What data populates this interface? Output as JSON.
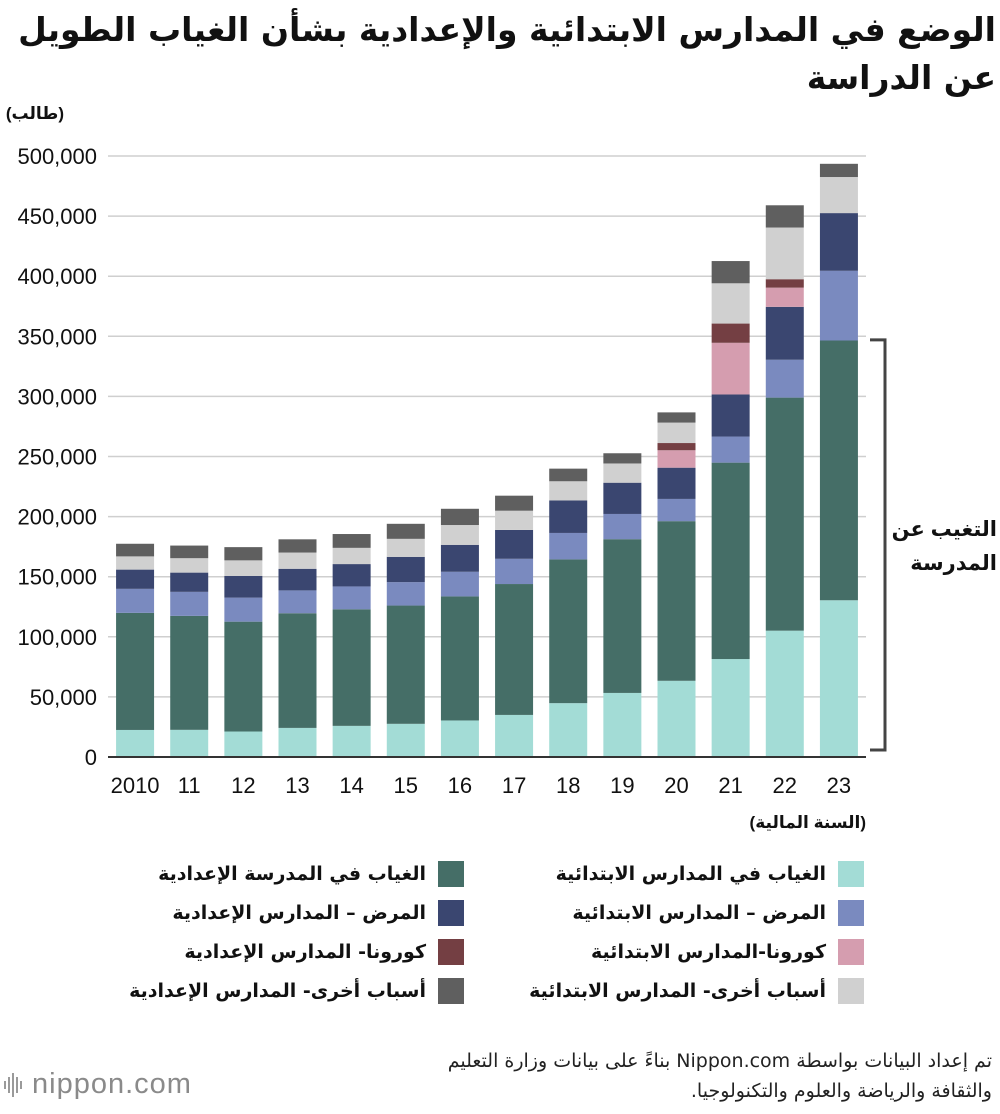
{
  "title": "الوضع في المدارس الابتدائية والإعدادية بشأن الغياب الطويل عن الدراسة",
  "chart_data": {
    "type": "stacked-bar",
    "ylabel": "(طالب)",
    "xlabel": "(السنة المالية)",
    "ylim": [
      0,
      500000
    ],
    "yticks": [
      0,
      50000,
      100000,
      150000,
      200000,
      250000,
      300000,
      350000,
      400000,
      450000,
      500000
    ],
    "ytick_labels": [
      "0",
      "50,000",
      "100,000",
      "150,000",
      "200,000",
      "250,000",
      "300,000",
      "350,000",
      "400,000",
      "450,000",
      "500,000"
    ],
    "categories": [
      "2010",
      "11",
      "12",
      "13",
      "14",
      "15",
      "16",
      "17",
      "18",
      "19",
      "20",
      "21",
      "22",
      "23"
    ],
    "series": [
      {
        "name": "الغياب في المدارس الابتدائية",
        "color": "#a3dcd6",
        "values": [
          22500,
          22600,
          21200,
          24200,
          25900,
          27600,
          30400,
          35000,
          44800,
          53300,
          63400,
          81500,
          105100,
          130400
        ]
      },
      {
        "name": "الغياب في المدرسة الإعدادية",
        "color": "#456e67",
        "values": [
          97400,
          94800,
          91400,
          95400,
          97000,
          98400,
          103200,
          108900,
          119600,
          127900,
          132800,
          163400,
          193900,
          216100
        ]
      },
      {
        "name": "المرض – المدارس الابتدائية",
        "color": "#7a8abf",
        "values": [
          20000,
          20000,
          20000,
          19000,
          19000,
          19500,
          20500,
          21000,
          22000,
          21000,
          18500,
          21700,
          31500,
          58000
        ]
      },
      {
        "name": "المرض – المدارس الإعدادية",
        "color": "#3a4670",
        "values": [
          16000,
          16000,
          18000,
          18000,
          18600,
          21000,
          22400,
          24000,
          27000,
          26000,
          26000,
          35000,
          44000,
          48000
        ]
      },
      {
        "name": "كورونا-المدارس الابتدائية",
        "color": "#d59daf",
        "values": [
          0,
          0,
          0,
          0,
          0,
          0,
          0,
          0,
          0,
          0,
          14500,
          43000,
          16000,
          0
        ]
      },
      {
        "name": "كورونا- المدارس الإعدادية",
        "color": "#743f43",
        "values": [
          0,
          0,
          0,
          0,
          0,
          0,
          0,
          0,
          0,
          0,
          6000,
          16000,
          7000,
          0
        ]
      },
      {
        "name": "أسباب أخرى- المدارس الابتدائية",
        "color": "#d0d0d0",
        "values": [
          11000,
          12000,
          13000,
          13500,
          13500,
          15000,
          16500,
          16000,
          16000,
          16000,
          17000,
          33500,
          43000,
          30000
        ]
      },
      {
        "name": "أسباب أخرى- المدارس الإعدادية",
        "color": "#5f5f5f",
        "values": [
          10500,
          10500,
          11000,
          11000,
          11500,
          12500,
          13500,
          12500,
          10500,
          8500,
          8500,
          18500,
          18500,
          11000
        ]
      }
    ],
    "bracket_label_line1": "التغيب عن",
    "bracket_label_line2": "المدرسة",
    "bracket_range": [
      0,
      347000
    ],
    "legend_position": "bottom"
  },
  "source": {
    "line1": "تم إعداد البيانات بواسطة Nippon.com بناءً على بيانات وزارة التعليم",
    "line2": "والثقافة والرياضة والعلوم والتكنولوجيا."
  },
  "logo": {
    "text": "nippon.com"
  }
}
